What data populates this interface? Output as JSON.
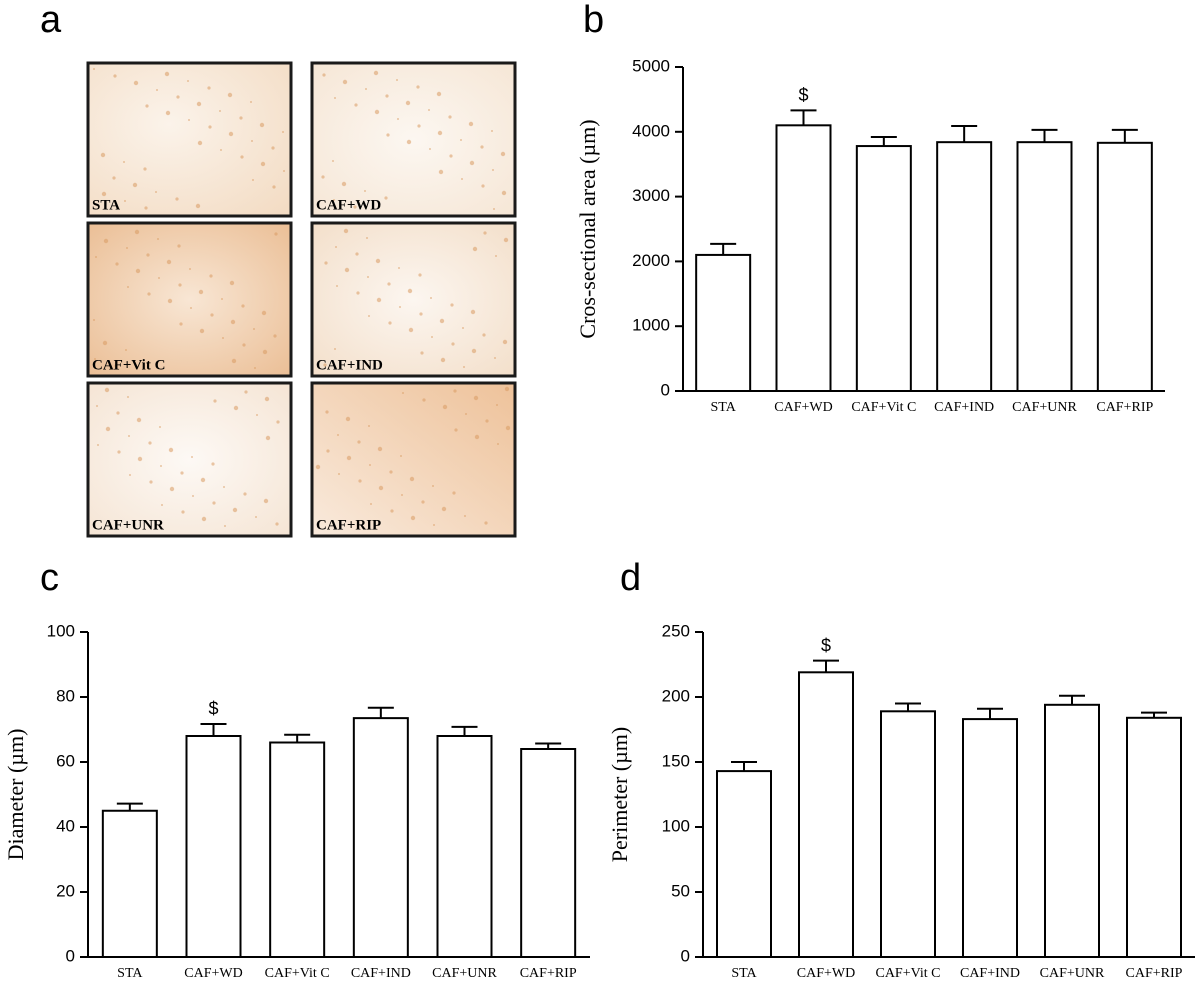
{
  "panel_a": {
    "label": "a",
    "images": [
      "STA",
      "CAF+WD",
      "CAF+Vit C",
      "CAF+IND",
      "CAF+UNR",
      "CAF+RIP"
    ]
  },
  "chart_data": [
    {
      "type": "bar",
      "panel_label": "b",
      "y_label": "Cros-sectional area (µm)",
      "categories": [
        "STA",
        "CAF+WD",
        "CAF+Vit C",
        "CAF+IND",
        "CAF+UNR",
        "CAF+RIP"
      ],
      "values": [
        2100,
        4100,
        3780,
        3840,
        3840,
        3830
      ],
      "errors": [
        170,
        230,
        140,
        250,
        190,
        200
      ],
      "color": "#ffffff",
      "ylim": [
        0,
        5000
      ],
      "yticks": [
        0,
        1000,
        2000,
        3000,
        4000,
        5000
      ],
      "annotations": [
        {
          "text": "$",
          "category": "CAF+WD"
        }
      ]
    },
    {
      "type": "bar",
      "panel_label": "c",
      "y_label": "Diameter  (µm)",
      "categories": [
        "STA",
        "CAF+WD",
        "CAF+Vit C",
        "CAF+IND",
        "CAF+UNR",
        "CAF+RIP"
      ],
      "values": [
        45,
        68,
        66,
        73.5,
        68,
        64
      ],
      "errors": [
        2.2,
        3.7,
        2.4,
        3.2,
        2.8,
        1.7
      ],
      "color": "#ffffff",
      "ylim": [
        0,
        100
      ],
      "yticks": [
        0,
        20,
        40,
        60,
        80,
        100
      ],
      "annotations": [
        {
          "text": "$",
          "category": "CAF+WD"
        }
      ]
    },
    {
      "type": "bar",
      "panel_label": "d",
      "y_label": "Perimeter  (µm)",
      "categories": [
        "STA",
        "CAF+WD",
        "CAF+Vit C",
        "CAF+IND",
        "CAF+UNR",
        "CAF+RIP"
      ],
      "values": [
        143,
        219,
        189,
        183,
        194,
        184
      ],
      "errors": [
        7,
        9,
        6,
        8,
        7,
        4
      ],
      "color": "#ffffff",
      "ylim": [
        0,
        250
      ],
      "yticks": [
        0,
        50,
        100,
        150,
        200,
        250
      ],
      "annotations": [
        {
          "text": "$",
          "category": "CAF+WD"
        }
      ]
    }
  ]
}
